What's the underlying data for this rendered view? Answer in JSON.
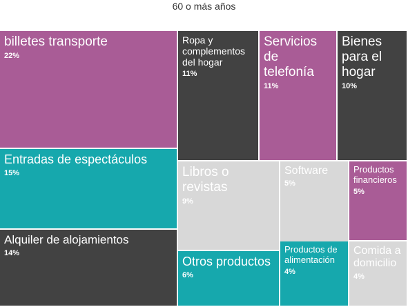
{
  "chart_data": {
    "type": "treemap",
    "title": "60 o más años",
    "colors": {
      "magenta": "#a95c96",
      "teal": "#16a8ad",
      "dark": "#424242",
      "light": "#d8d8d8"
    },
    "items": [
      {
        "label": "billetes transporte",
        "value": 22,
        "pct_label": "22%",
        "color": "magenta"
      },
      {
        "label": "Entradas de espectáculos",
        "value": 15,
        "pct_label": "15%",
        "color": "teal"
      },
      {
        "label": "Alquiler de alojamientos",
        "value": 14,
        "pct_label": "14%",
        "color": "dark"
      },
      {
        "label": "Ropa y complementos del hogar",
        "value": 11,
        "pct_label": "11%",
        "color": "dark"
      },
      {
        "label": "Servicios de telefonía",
        "value": 11,
        "pct_label": "11%",
        "color": "magenta"
      },
      {
        "label": "Bienes para el hogar",
        "value": 10,
        "pct_label": "10%",
        "color": "dark"
      },
      {
        "label": "Libros o revistas",
        "value": 9,
        "pct_label": "9%",
        "color": "light"
      },
      {
        "label": "Software",
        "value": 5,
        "pct_label": "5%",
        "color": "light"
      },
      {
        "label": "Productos financieros",
        "value": 5,
        "pct_label": "5%",
        "color": "magenta"
      },
      {
        "label": "Otros productos",
        "value": 6,
        "pct_label": "6%",
        "color": "teal"
      },
      {
        "label": "Productos de alimentación",
        "value": 4,
        "pct_label": "4%",
        "color": "teal"
      },
      {
        "label": "Comida a domicilio",
        "value": 4,
        "pct_label": "4%",
        "color": "light"
      }
    ]
  }
}
